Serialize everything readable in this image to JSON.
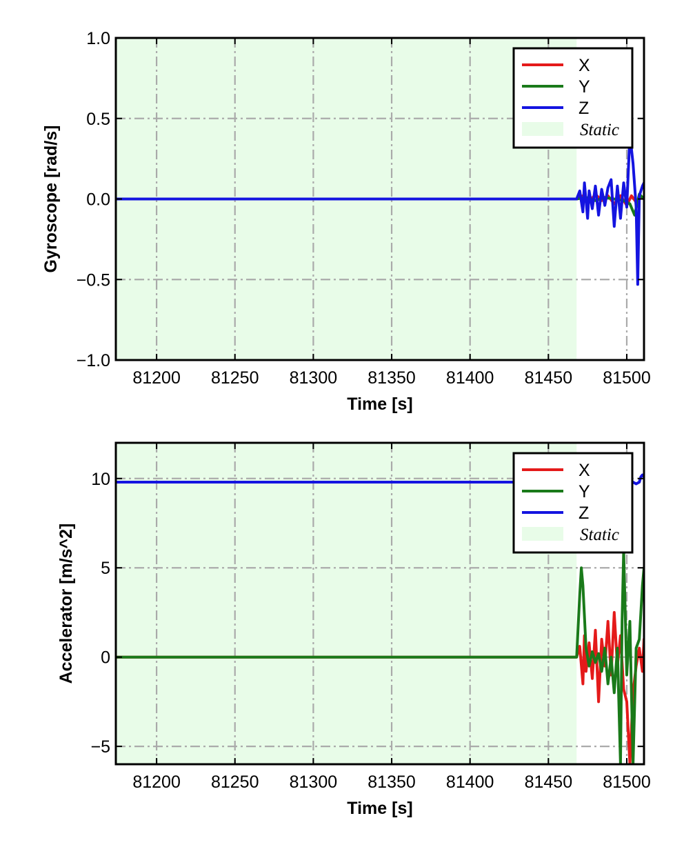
{
  "chart_data": [
    {
      "type": "line",
      "xlabel": "Time [s]",
      "ylabel": "Gyroscope [rad/s]",
      "xlim": [
        81174,
        81511
      ],
      "ylim": [
        -1.0,
        1.0
      ],
      "xticks": [
        81200,
        81250,
        81300,
        81350,
        81400,
        81450,
        81500
      ],
      "yticks": [
        -1.0,
        -0.5,
        0.0,
        0.5,
        1.0
      ],
      "xtick_labels": [
        "81200",
        "81250",
        "81300",
        "81350",
        "81400",
        "81450",
        "81500"
      ],
      "ytick_labels": [
        "−1.0",
        "−0.5",
        "0.0",
        "0.5",
        "1.0"
      ],
      "grid": true,
      "legend_position": "top-right",
      "static_span": [
        81174,
        81468
      ],
      "legend": [
        {
          "label": "X",
          "kind": "line",
          "color": "#e41a1a"
        },
        {
          "label": "Y",
          "kind": "line",
          "color": "#1a7a1a"
        },
        {
          "label": "Z",
          "kind": "line",
          "color": "#1414e0"
        },
        {
          "label": "Static",
          "kind": "patch",
          "color": "#e8fce8"
        }
      ],
      "series": [
        {
          "name": "X",
          "color": "#e41a1a",
          "x": [
            81174,
            81468,
            81472,
            81476,
            81480,
            81484,
            81488,
            81492,
            81496,
            81500,
            81503,
            81506,
            81509,
            81511
          ],
          "y": [
            0.0,
            0.0,
            0.02,
            -0.02,
            0.03,
            -0.01,
            0.02,
            -0.03,
            0.02,
            -0.04,
            0.02,
            -0.02,
            0.01,
            0.0
          ]
        },
        {
          "name": "Y",
          "color": "#1a7a1a",
          "x": [
            81174,
            81468,
            81474,
            81480,
            81486,
            81492,
            81498,
            81502,
            81505,
            81508,
            81511
          ],
          "y": [
            0.0,
            0.0,
            0.01,
            -0.01,
            0.01,
            0.0,
            -0.01,
            -0.03,
            -0.1,
            0.03,
            0.0
          ]
        },
        {
          "name": "Z",
          "color": "#1414e0",
          "x": [
            81174,
            81468,
            81470,
            81472,
            81473,
            81475,
            81476,
            81478,
            81480,
            81482,
            81484,
            81486,
            81488,
            81490,
            81492,
            81494,
            81496,
            81498,
            81500,
            81502,
            81504,
            81506,
            81507,
            81508,
            81510,
            81511
          ],
          "y": [
            0.0,
            0.0,
            0.05,
            -0.08,
            0.1,
            -0.12,
            0.05,
            -0.06,
            0.08,
            -0.1,
            0.06,
            -0.04,
            0.07,
            0.12,
            -0.17,
            0.08,
            -0.12,
            0.1,
            -0.05,
            0.4,
            0.22,
            -0.05,
            -0.53,
            0.02,
            0.08,
            0.1
          ]
        }
      ]
    },
    {
      "type": "line",
      "xlabel": "Time [s]",
      "ylabel": "Accelerator [m/s^2]",
      "xlim": [
        81174,
        81511
      ],
      "ylim": [
        -6,
        12
      ],
      "xticks": [
        81200,
        81250,
        81300,
        81350,
        81400,
        81450,
        81500
      ],
      "yticks": [
        -5,
        0,
        5,
        10
      ],
      "xtick_labels": [
        "81200",
        "81250",
        "81300",
        "81350",
        "81400",
        "81450",
        "81500"
      ],
      "ytick_labels": [
        "−5",
        "0",
        "5",
        "10"
      ],
      "grid": true,
      "legend_position": "top-right",
      "static_span": [
        81174,
        81468
      ],
      "legend": [
        {
          "label": "X",
          "kind": "line",
          "color": "#e41a1a"
        },
        {
          "label": "Y",
          "kind": "line",
          "color": "#1a7a1a"
        },
        {
          "label": "Z",
          "kind": "line",
          "color": "#1414e0"
        },
        {
          "label": "Static",
          "kind": "patch",
          "color": "#e8fce8"
        }
      ],
      "series": [
        {
          "name": "X",
          "color": "#e41a1a",
          "x": [
            81174,
            81468,
            81470,
            81472,
            81473,
            81474,
            81476,
            81478,
            81480,
            81482,
            81484,
            81486,
            81488,
            81490,
            81492,
            81494,
            81496,
            81498,
            81500,
            81502,
            81504,
            81506,
            81508,
            81510,
            81511
          ],
          "y": [
            0.0,
            0.0,
            0.6,
            -1.5,
            1.2,
            -0.8,
            0.8,
            -1.2,
            1.5,
            -2.5,
            1.0,
            -0.5,
            2.0,
            -1.0,
            2.5,
            -0.5,
            1.2,
            -1.8,
            -2.5,
            -6.0,
            -2.0,
            -0.5,
            0.5,
            -0.8,
            1.0
          ]
        },
        {
          "name": "Y",
          "color": "#1a7a1a",
          "x": [
            81174,
            81468,
            81470,
            81471,
            81472,
            81474,
            81476,
            81478,
            81480,
            81482,
            81484,
            81486,
            81488,
            81490,
            81492,
            81494,
            81496,
            81497,
            81498,
            81500,
            81502,
            81504,
            81506,
            81508,
            81510,
            81511
          ],
          "y": [
            0.0,
            0.0,
            3.5,
            5.0,
            4.0,
            0.5,
            -0.5,
            0.3,
            -0.3,
            0.2,
            -0.8,
            0.5,
            -1.5,
            0.0,
            -2.0,
            0.5,
            -6.0,
            2.0,
            6.0,
            -1.0,
            2.0,
            -6.0,
            0.5,
            1.0,
            4.0,
            5.0
          ]
        },
        {
          "name": "Z",
          "color": "#1414e0",
          "x": [
            81174,
            81468,
            81470,
            81472,
            81474,
            81476,
            81478,
            81480,
            81482,
            81484,
            81486,
            81488,
            81490,
            81492,
            81494,
            81496,
            81498,
            81500,
            81502,
            81504,
            81506,
            81508,
            81509,
            81510,
            81511
          ],
          "y": [
            9.8,
            9.8,
            9.9,
            9.8,
            9.9,
            9.8,
            9.8,
            9.9,
            9.8,
            9.8,
            9.9,
            9.8,
            9.8,
            9.9,
            9.8,
            9.7,
            9.9,
            9.8,
            9.9,
            9.8,
            9.7,
            9.8,
            10.1,
            10.2,
            10.1
          ]
        }
      ]
    }
  ]
}
